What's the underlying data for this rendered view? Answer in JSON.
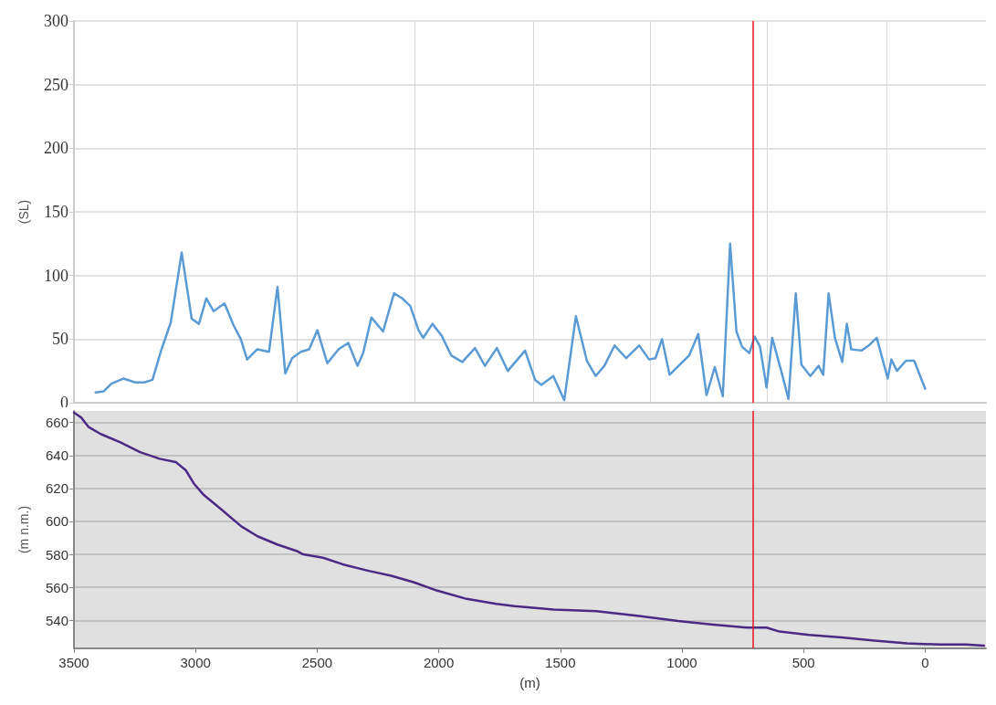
{
  "chart_data": [
    {
      "type": "line",
      "ylabel": "(SL)",
      "xlim": [
        3500,
        -250
      ],
      "ylim": [
        0,
        300
      ],
      "yticks": [
        0,
        50,
        100,
        150,
        200,
        250,
        300
      ],
      "xticks": [
        {
          "value": 2585,
          "label": null
        },
        {
          "value": 2100,
          "label": null
        },
        {
          "value": 1610,
          "label": null
        },
        {
          "value": 1130,
          "label": null
        },
        {
          "value": 650,
          "label": null
        },
        {
          "value": 160,
          "label": null
        }
      ],
      "grid": true,
      "tick_labels": "y",
      "series": [
        {
          "color": "#5b9bd5",
          "x": [
            3411,
            3377,
            3346,
            3297,
            3248,
            3211,
            3177,
            3140,
            3102,
            3057,
            3016,
            2986,
            2956,
            2926,
            2881,
            2844,
            2814,
            2788,
            2746,
            2698,
            2663,
            2631,
            2603,
            2567,
            2533,
            2499,
            2458,
            2412,
            2372,
            2334,
            2311,
            2277,
            2229,
            2184,
            2150,
            2117,
            2083,
            2064,
            2026,
            1989,
            1948,
            1903,
            1851,
            1810,
            1761,
            1716,
            1645,
            1604,
            1578,
            1529,
            1484,
            1436,
            1391,
            1355,
            1319,
            1277,
            1229,
            1176,
            1135,
            1109,
            1082,
            1051,
            971,
            933,
            899,
            865,
            832,
            802,
            776,
            753,
            723,
            701,
            679,
            652,
            629,
            592,
            562,
            532,
            509,
            472,
            438,
            419,
            397,
            371,
            341,
            322,
            304,
            262,
            232,
            199,
            154,
            139,
            116,
            79,
            45,
            0
          ],
          "values": [
            8,
            9,
            15,
            19,
            16,
            16,
            18,
            42,
            63,
            118,
            66,
            62,
            82,
            72,
            78,
            61,
            50,
            34,
            42,
            40,
            91,
            23,
            35,
            40,
            42,
            57,
            31,
            42,
            47,
            29,
            39,
            67,
            56,
            86,
            82,
            76,
            57,
            51,
            62,
            53,
            37,
            32,
            43,
            29,
            43,
            25,
            41,
            18,
            14,
            21,
            2,
            68,
            33,
            21,
            29,
            45,
            35,
            45,
            34,
            35,
            50,
            22,
            37,
            54,
            6,
            28,
            5,
            125,
            56,
            44,
            39,
            52,
            44,
            12,
            51,
            25,
            3,
            86,
            30,
            21,
            29,
            22,
            86,
            51,
            32,
            62,
            42,
            41,
            45,
            51,
            19,
            34,
            25,
            33,
            33,
            11
          ]
        }
      ],
      "ref_lines": [
        {
          "axis": "x",
          "value": 710,
          "color": "#e8141c"
        }
      ]
    },
    {
      "type": "line",
      "xlabel": "(m)",
      "ylabel": "(m n.m.)",
      "xlim": [
        3500,
        -250
      ],
      "xticks": [
        3500,
        3000,
        2500,
        2000,
        1500,
        1000,
        500,
        0
      ],
      "ylim": [
        523,
        667
      ],
      "yticks": [
        540,
        560,
        580,
        600,
        620,
        640,
        660
      ],
      "grid": "y",
      "series": [
        {
          "color": "#4b2a86",
          "x": [
            3500,
            3470,
            3441,
            3390,
            3309,
            3228,
            3148,
            3081,
            3040,
            3007,
            2966,
            2892,
            2812,
            2745,
            2664,
            2583,
            2557,
            2476,
            2395,
            2288,
            2195,
            2101,
            2006,
            1885,
            1764,
            1688,
            1527,
            1352,
            1177,
            1016,
            881,
            733,
            652,
            599,
            478,
            343,
            208,
            74,
            -61,
            -168,
            -242
          ],
          "values": [
            666,
            663,
            657.4,
            653,
            648,
            642,
            638,
            636,
            631,
            623,
            616,
            607,
            597,
            591,
            586,
            582,
            580,
            578,
            574,
            570,
            567,
            563,
            558,
            553,
            550,
            548.6,
            546.6,
            545.6,
            542.6,
            539.6,
            537.6,
            535.6,
            535.6,
            533.2,
            531.2,
            529.7,
            527.7,
            526.1,
            525.3,
            525.3,
            524.7
          ]
        }
      ],
      "ref_lines": [
        {
          "axis": "x",
          "value": 710,
          "color": "#e8141c"
        }
      ]
    }
  ]
}
